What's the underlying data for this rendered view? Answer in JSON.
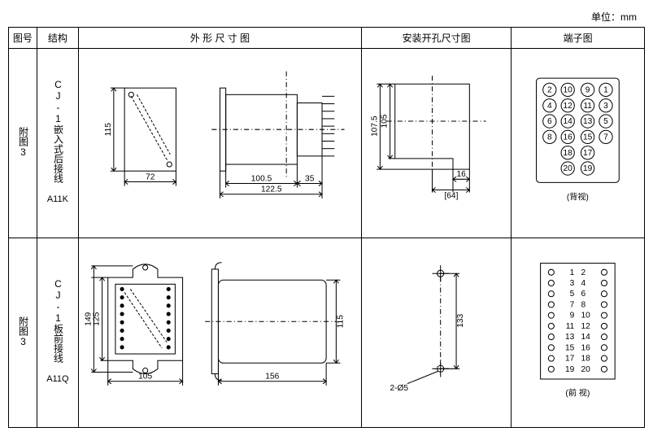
{
  "meta": {
    "unit_label": "单位：mm"
  },
  "headers": {
    "fig": "图号",
    "struct": "结构",
    "outline": "外 形 尺 寸 图",
    "mount": "安装开孔尺寸图",
    "term": "端子图"
  },
  "rows": [
    {
      "fig_no": "附图3",
      "struct_label": "CJ-1嵌入式后接线",
      "struct_code": "A11K",
      "outline": {
        "front_w": "72",
        "front_h": "115",
        "side_total": "122.5",
        "side_body": "100.5",
        "side_tail": "35"
      },
      "mount": {
        "h1": "107.5",
        "h2": "105",
        "w_in": "16",
        "w_out": "[64]"
      },
      "term": {
        "view_label": "(背视)",
        "layout": "circle-20",
        "circles": [
          [
            "2",
            "10",
            "9",
            "1"
          ],
          [
            "4",
            "12",
            "11",
            "3"
          ],
          [
            "6",
            "14",
            "13",
            "5"
          ],
          [
            "8",
            "16",
            "15",
            "7"
          ],
          [
            "",
            "18",
            "17",
            ""
          ],
          [
            "",
            "20",
            "19",
            ""
          ]
        ]
      }
    },
    {
      "fig_no": "附图3",
      "struct_label": "CJ-1板前接线",
      "struct_code": "A11Q",
      "outline": {
        "front_w": "105",
        "front_h_out": "149",
        "front_h_in": "125",
        "side_len": "156",
        "side_h": "115"
      },
      "mount": {
        "h": "133",
        "hole": "2-Ø5"
      },
      "term": {
        "view_label": "(前 视)",
        "layout": "grid-20",
        "rows": [
          [
            "1",
            "2"
          ],
          [
            "3",
            "4"
          ],
          [
            "5",
            "6"
          ],
          [
            "7",
            "8"
          ],
          [
            "9",
            "10"
          ],
          [
            "11",
            "12"
          ],
          [
            "13",
            "14"
          ],
          [
            "15",
            "16"
          ],
          [
            "17",
            "18"
          ],
          [
            "19",
            "20"
          ]
        ]
      }
    }
  ],
  "style": {
    "stroke": "#000000",
    "stroke_width": 1,
    "dash": "3,2",
    "bg": "#ffffff",
    "text_color": "#000000",
    "dim_font_size": 10
  }
}
